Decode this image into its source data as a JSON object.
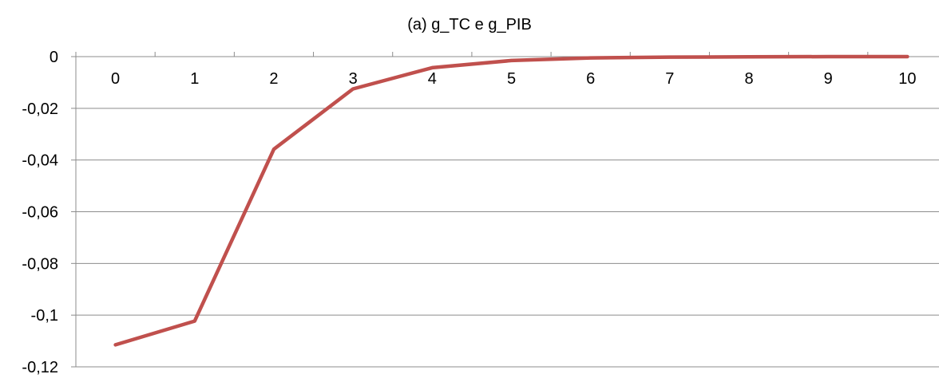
{
  "chart_data": {
    "type": "line",
    "title": "(a) g_TC e g_PIB",
    "xlabel": "",
    "ylabel": "",
    "categories": [
      "0",
      "1",
      "2",
      "3",
      "4",
      "5",
      "6",
      "7",
      "8",
      "9",
      "10"
    ],
    "series": [
      {
        "values": [
          -0.1115,
          -0.1023,
          -0.0358,
          -0.0125,
          -0.0043,
          -0.0015,
          -0.0005,
          -0.0002,
          -0.0001,
          0,
          0
        ],
        "color": "#C0504D"
      }
    ],
    "ylim": [
      -0.12,
      0
    ],
    "yticks": [
      "0",
      "-0,02",
      "-0,04",
      "-0,06",
      "-0,08",
      "-0,1",
      "-0,12"
    ],
    "grid": true,
    "legend": "none"
  }
}
